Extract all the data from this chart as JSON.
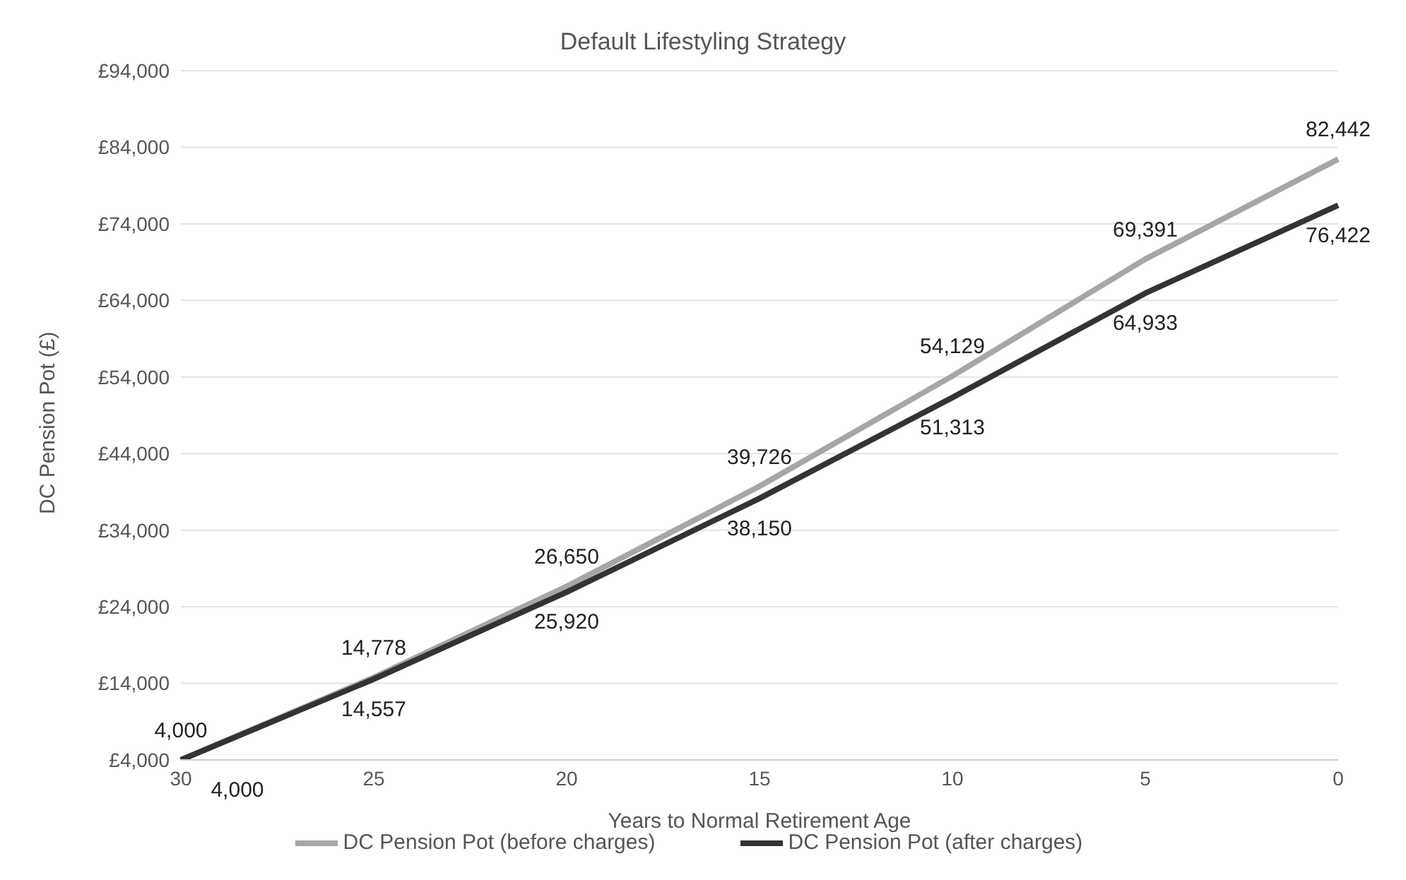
{
  "chart_data": {
    "type": "line",
    "title": "Default Lifestyling Strategy",
    "xlabel": "Years to Normal Retirement Age",
    "ylabel": "DC Pension Pot (£)",
    "categories": [
      "30",
      "25",
      "20",
      "15",
      "10",
      "5",
      "0"
    ],
    "series": [
      {
        "name": "DC Pension Pot (before charges)",
        "color": "#a6a6a6",
        "values": [
          4000,
          14778,
          26650,
          39726,
          54129,
          69391,
          82442
        ],
        "value_labels": [
          "4,000",
          "14,778",
          "26,650",
          "39,726",
          "54,129",
          "69,391",
          "82,442"
        ]
      },
      {
        "name": "DC Pension Pot (after charges)",
        "color": "#333333",
        "values": [
          4000,
          14557,
          25920,
          38150,
          51313,
          64933,
          76422
        ],
        "value_labels": [
          "4,000",
          "14,557",
          "25,920",
          "38,150",
          "51,313",
          "64,933",
          "76,422"
        ]
      }
    ],
    "ylim": [
      4000,
      94000
    ],
    "yticks": [
      {
        "value": 4000,
        "label": "£4,000"
      },
      {
        "value": 14000,
        "label": "£14,000"
      },
      {
        "value": 24000,
        "label": "£24,000"
      },
      {
        "value": 34000,
        "label": "£34,000"
      },
      {
        "value": 44000,
        "label": "£44,000"
      },
      {
        "value": 54000,
        "label": "£54,000"
      },
      {
        "value": 64000,
        "label": "£64,000"
      },
      {
        "value": 74000,
        "label": "£74,000"
      },
      {
        "value": 84000,
        "label": "£84,000"
      },
      {
        "value": 94000,
        "label": "£94,000"
      }
    ],
    "grid": "y",
    "legend": "bottom",
    "marker": "none",
    "line_style": "solid"
  }
}
